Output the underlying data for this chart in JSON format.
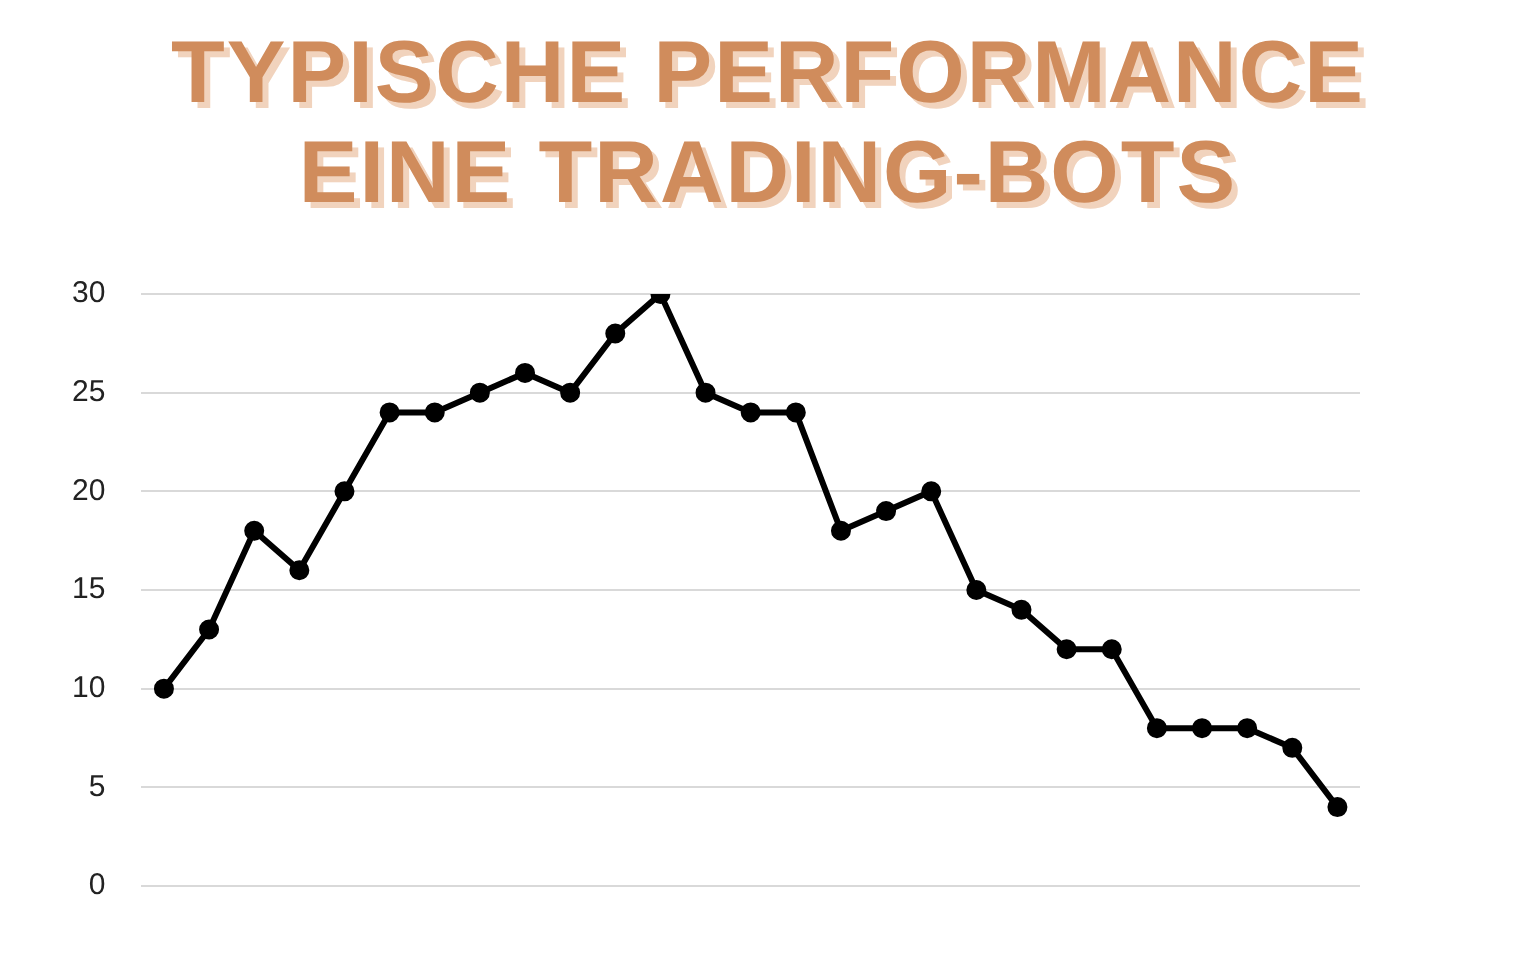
{
  "chart_data": {
    "type": "line",
    "title": "TYPISCHE PERFORMANCE EINE TRADING-BOTS",
    "categories": [
      null,
      null,
      null,
      null,
      null,
      null,
      null,
      null,
      null,
      null,
      null,
      null,
      null,
      null,
      null,
      null,
      null,
      null,
      null,
      null,
      null,
      null,
      null,
      null,
      null,
      null,
      null
    ],
    "series": [
      {
        "color": "#000000",
        "values": [
          10,
          13,
          18,
          16,
          20,
          24,
          24,
          25,
          26,
          25,
          28,
          30,
          25,
          24,
          24,
          18,
          19,
          20,
          15,
          14,
          12,
          12,
          8,
          8,
          8,
          7,
          4
        ]
      }
    ],
    "ylim": [
      0,
      30
    ],
    "yticks": [
      0,
      5,
      10,
      15,
      20,
      25,
      30
    ],
    "grid": "y",
    "legend": false,
    "tick_labels": "y",
    "marker": "circle",
    "line_style": "solid"
  }
}
